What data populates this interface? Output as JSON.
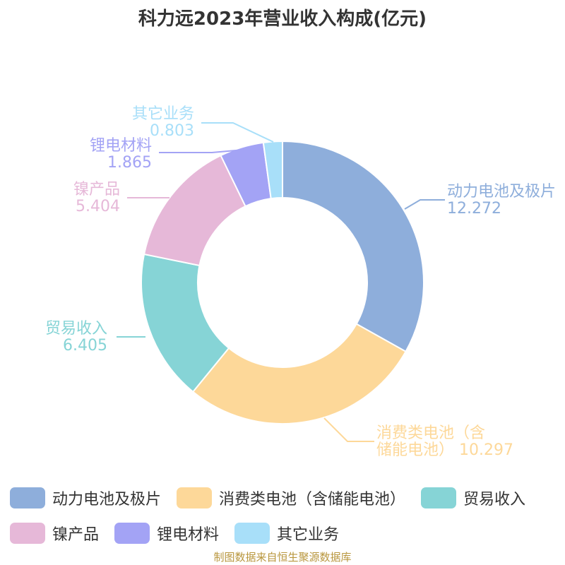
{
  "title": "科力远2023年营业收入构成(亿元)",
  "source": "制图数据来自恒生聚源数据库",
  "chart_data": {
    "type": "pie",
    "subtype": "donut",
    "title": "科力远2023年营业收入构成(亿元)",
    "legend_position": "bottom",
    "slices": [
      {
        "name": "动力电池及极片",
        "value": 12.272,
        "value_label": "12.272",
        "color": "#8eaedb",
        "label_lines": [
          "动力电池及极片",
          "12.272"
        ]
      },
      {
        "name": "消费类电池（含储能电池）",
        "value": 10.297,
        "value_label": "10.297",
        "color": "#fdd899",
        "label_lines": [
          "消费类电池（含",
          "储能电池） 10.297"
        ]
      },
      {
        "name": "贸易收入",
        "value": 6.405,
        "value_label": "6.405",
        "color": "#86d4d6",
        "label_lines": [
          "贸易收入",
          "6.405"
        ]
      },
      {
        "name": "镍产品",
        "value": 5.404,
        "value_label": "5.404",
        "color": "#e6b8d8",
        "label_lines": [
          "镍产品",
          "5.404"
        ]
      },
      {
        "name": "锂电材料",
        "value": 1.865,
        "value_label": "1.865",
        "color": "#a3a3f5",
        "label_lines": [
          "锂电材料",
          "1.865"
        ]
      },
      {
        "name": "其它业务",
        "value": 0.803,
        "value_label": "0.803",
        "color": "#a8dff9",
        "label_lines": [
          "其它业务",
          "0.803"
        ]
      }
    ]
  }
}
